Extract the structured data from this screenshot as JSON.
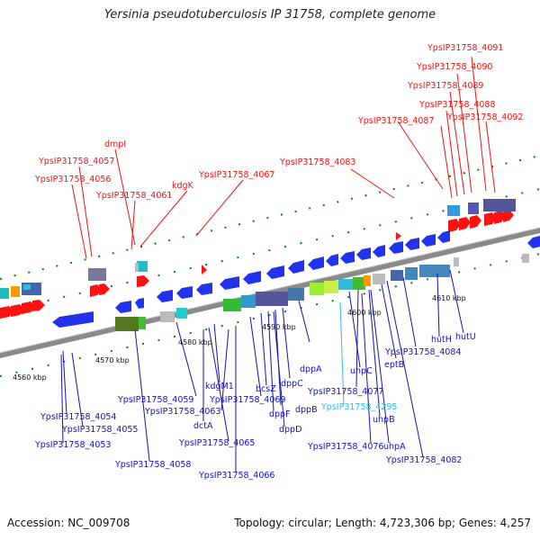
{
  "title": "Yersinia pseudotuberculosis IP 31758, complete genome",
  "footer": {
    "accession": "Accession: NC_009708",
    "summary": "Topology: circular; Length: 4,723,306 bp; Genes: 4,257"
  },
  "colors": {
    "label_red": "#ee1111",
    "label_blue": "#1111bb",
    "label_cyan": "#33bbdd",
    "axis": "#888888",
    "tick_green": "#117711"
  },
  "scale_ticks": [
    "4560 kbp",
    "4570 kbp",
    "4580 kbp",
    "4590 kbp",
    "4600 kbp",
    "4610 kbp"
  ],
  "labels_top": [
    "YpsIP31758_4091",
    "YpsIP31758_4090",
    "YpsIP31758_4089",
    "YpsIP31758_4088",
    "YpsIP31758_4087",
    "YpsIP31758_4092",
    "dmpI",
    "YpsIP31758_4057",
    "YpsIP31758_4083",
    "YpsIP31758_4056",
    "YpsIP31758_4067",
    "kdgK",
    "YpsIP31758_4061"
  ],
  "labels_bottom": [
    "hutU",
    "hutH",
    "YpsIP31758_4084",
    "eptB",
    "uhpC",
    "YpsIP31758_4077",
    "YpsIP31758_4295",
    "uhpB",
    "uhpA",
    "YpsIP31758_4082",
    "YpsIP31758_4076",
    "dppA",
    "dppC",
    "dppB",
    "dppF",
    "dppD",
    "bcsZ",
    "YpsIP31758_4069",
    "kdgM1",
    "YpsIP31758_4063",
    "YpsIP31758_4059",
    "dctA",
    "YpsIP31758_4065",
    "YpsIP31758_4066",
    "YpsIP31758_4058",
    "YpsIP31758_4054",
    "YpsIP31758_4055",
    "YpsIP31758_4053"
  ]
}
